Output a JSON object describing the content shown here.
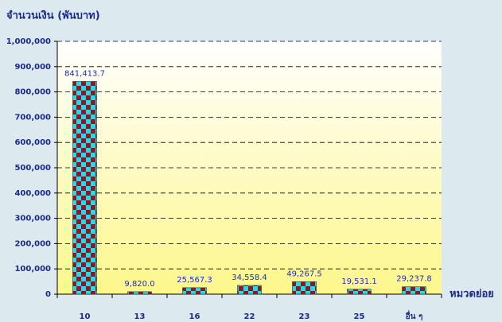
{
  "chart_data": {
    "type": "bar",
    "y_axis_label": "จำนวนเงิน (พันบาท)",
    "x_axis_label": "หมวดย่อย",
    "categories": [
      "10",
      "13",
      "16",
      "22",
      "23",
      "25",
      "อื่น ๆ"
    ],
    "values": [
      841413.7,
      9820.0,
      25567.3,
      34558.4,
      49267.5,
      19531.1,
      29237.8
    ],
    "value_labels": [
      "841,413.7",
      "9,820.0",
      "25,567.3",
      "34,558.4",
      "49,267.5",
      "19,531.1",
      "29,237.8"
    ],
    "color": "#22dde6",
    "pattern_color": "#8a1a2a",
    "ylim": [
      0,
      1000000
    ],
    "yticks": [
      0,
      {
        "value": 100000,
        "label": "100,000"
      },
      {
        "value": 200000,
        "label": "200,000"
      },
      {
        "value": 300000,
        "label": "300,000"
      },
      {
        "value": 400000,
        "label": "400,000"
      },
      {
        "value": 500000,
        "label": "500,000"
      },
      {
        "value": 600000,
        "label": "600,000"
      },
      {
        "value": 700000,
        "label": "700,000"
      },
      {
        "value": 800000,
        "label": "800,000"
      },
      {
        "value": 900000,
        "label": "900,000"
      },
      {
        "value": 1000000,
        "label": "1,000,000"
      }
    ],
    "grid": true
  }
}
